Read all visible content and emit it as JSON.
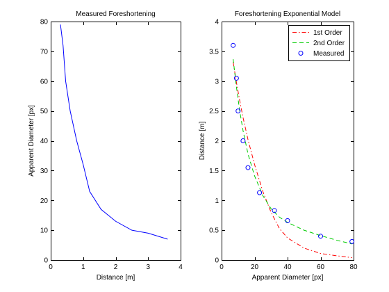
{
  "chart_data": [
    {
      "type": "line",
      "title": "Measured Foreshortening",
      "xlabel": "Distance [m]",
      "ylabel": "Apparent Diameter [px]",
      "xlim": [
        0,
        4
      ],
      "ylim": [
        0,
        80
      ],
      "xticks": [
        0,
        1,
        2,
        3,
        4
      ],
      "yticks": [
        0,
        10,
        20,
        30,
        40,
        50,
        60,
        70,
        80
      ],
      "grid": false,
      "series": [
        {
          "color": "#0000ff",
          "style": "solid",
          "marker": "none",
          "x": [
            0.3,
            0.38,
            0.46,
            0.6,
            0.8,
            1.0,
            1.2,
            1.55,
            2.0,
            2.5,
            3.0,
            3.6
          ],
          "y": [
            79,
            72,
            60,
            50,
            40,
            32,
            23,
            17,
            13,
            10,
            9,
            7
          ]
        }
      ]
    },
    {
      "type": "line",
      "title": "Foreshortening Exponential Model",
      "xlabel": "Apparent Diameter [px]",
      "ylabel": "Distance [m]",
      "xlim": [
        0,
        80
      ],
      "ylim": [
        0,
        4
      ],
      "xticks": [
        0,
        20,
        40,
        60,
        80
      ],
      "yticks": [
        0,
        0.5,
        1,
        1.5,
        2,
        2.5,
        3,
        3.5,
        4
      ],
      "grid": false,
      "legend_position": "top-right",
      "series": [
        {
          "name": "1st Order",
          "color": "#ff0000",
          "style": "dash-dot",
          "marker": "none",
          "x": [
            7,
            9,
            11,
            13,
            16,
            20,
            25,
            30,
            35,
            40,
            50,
            60,
            70,
            79
          ],
          "y": [
            3.32,
            2.98,
            2.67,
            2.39,
            2.02,
            1.6,
            1.15,
            0.8,
            0.53,
            0.37,
            0.2,
            0.11,
            0.07,
            0.04
          ]
        },
        {
          "name": "2nd Order",
          "color": "#00cc00",
          "style": "dashed",
          "marker": "none",
          "x": [
            7,
            9,
            11,
            13,
            16,
            20,
            25,
            30,
            35,
            40,
            50,
            60,
            70,
            79
          ],
          "y": [
            3.37,
            2.9,
            2.5,
            2.17,
            1.78,
            1.41,
            1.08,
            0.86,
            0.72,
            0.63,
            0.5,
            0.41,
            0.33,
            0.27
          ]
        },
        {
          "name": "Measured",
          "color": "#0000ff",
          "style": "none",
          "marker": "circle",
          "x": [
            7,
            9,
            10,
            13,
            16,
            23,
            32,
            40,
            60,
            79
          ],
          "y": [
            3.6,
            3.05,
            2.5,
            2.0,
            1.55,
            1.13,
            0.83,
            0.66,
            0.4,
            0.31
          ]
        }
      ]
    }
  ]
}
